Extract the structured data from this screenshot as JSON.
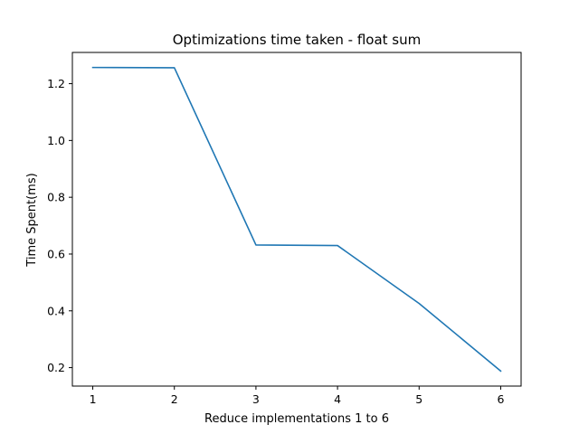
{
  "chart_data": {
    "type": "line",
    "title": "Optimizations time taken - float sum",
    "xlabel": "Reduce implementations 1 to 6",
    "ylabel": "Time Spent(ms)",
    "xlim": [
      0.75,
      6.25
    ],
    "ylim": [
      0.135,
      1.31
    ],
    "xticks": [
      1,
      2,
      3,
      4,
      5,
      6
    ],
    "yticks": [
      0.2,
      0.4,
      0.6,
      0.8,
      1.0,
      1.2
    ],
    "ytick_labels": [
      "0.2",
      "0.4",
      "0.6",
      "0.8",
      "1.0",
      "1.2"
    ],
    "grid": false,
    "series": [
      {
        "color": "#1f77b4",
        "x": [
          1,
          2,
          3,
          4,
          5,
          6
        ],
        "values": [
          1.257,
          1.256,
          0.632,
          0.63,
          0.426,
          0.188
        ]
      }
    ]
  }
}
